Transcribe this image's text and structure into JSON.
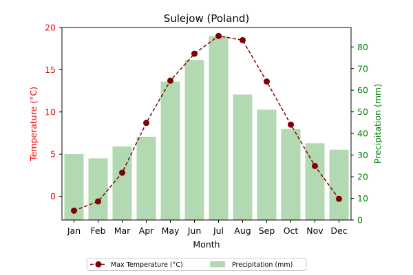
{
  "chart_data": {
    "type": "bar",
    "title": "Sulejow (Poland)",
    "xlabel": "Month",
    "categories": [
      "Jan",
      "Feb",
      "Mar",
      "Apr",
      "May",
      "Jun",
      "Jul",
      "Aug",
      "Sep",
      "Oct",
      "Nov",
      "Dec"
    ],
    "y_left": {
      "label": "Temperature (°C)",
      "range": [
        -2.8,
        20
      ],
      "ticks": [
        0,
        5,
        10,
        15,
        20
      ],
      "color": "#ff0000"
    },
    "y_right": {
      "label": "Precipitation (mm)",
      "range": [
        0,
        89
      ],
      "ticks": [
        0,
        10,
        20,
        30,
        40,
        50,
        60,
        70,
        80
      ],
      "color": "#008000"
    },
    "series": [
      {
        "name": "Max Temperature (°C)",
        "type": "line",
        "axis": "left",
        "color": "#800000",
        "line_style": "dashed",
        "marker": "circle",
        "values": [
          -1.7,
          -0.6,
          2.8,
          8.7,
          13.7,
          16.9,
          19.0,
          18.5,
          13.6,
          8.5,
          3.6,
          -0.3
        ]
      },
      {
        "name": "Precipitation (mm)",
        "type": "bar",
        "axis": "right",
        "color": "#b2d9b2",
        "values": [
          30.5,
          28.5,
          34.0,
          38.5,
          64.0,
          74.0,
          85.0,
          58.0,
          51.0,
          42.0,
          35.5,
          32.5
        ]
      }
    ],
    "legend": {
      "position": "bottom-center",
      "entries": [
        "Max Temperature (°C)",
        "Precipitation (mm)"
      ]
    },
    "grid": false
  }
}
